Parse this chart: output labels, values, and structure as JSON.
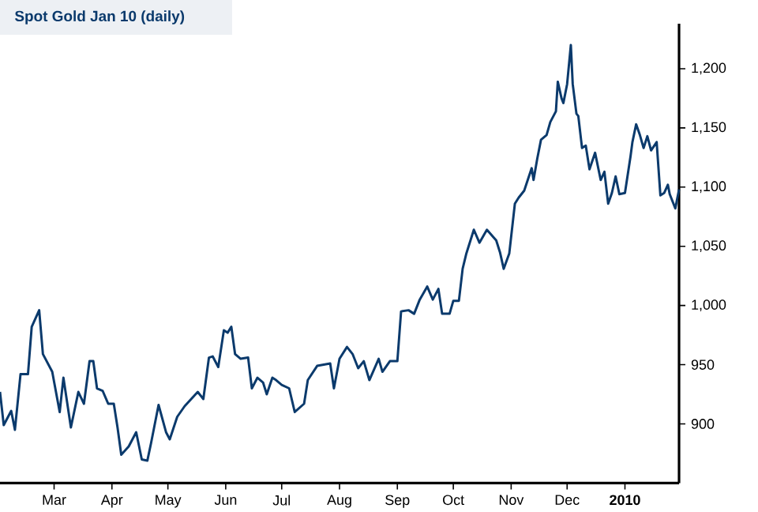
{
  "chart_data": {
    "type": "line",
    "title": "Spot Gold Jan 10 (daily)",
    "color": "#0b3a6c",
    "x": [
      "2009-01-31",
      "2009-02-02",
      "2009-02-06",
      "2009-02-08",
      "2009-02-11",
      "2009-02-15",
      "2009-02-17",
      "2009-02-21",
      "2009-02-23",
      "2009-02-28",
      "2009-03-04",
      "2009-03-06",
      "2009-03-10",
      "2009-03-14",
      "2009-03-17",
      "2009-03-20",
      "2009-03-22",
      "2009-03-24",
      "2009-03-27",
      "2009-03-30",
      "2009-04-02",
      "2009-04-04",
      "2009-04-06",
      "2009-04-10",
      "2009-04-14",
      "2009-04-17",
      "2009-04-20",
      "2009-04-22",
      "2009-04-26",
      "2009-04-30",
      "2009-05-02",
      "2009-05-06",
      "2009-05-10",
      "2009-05-17",
      "2009-05-20",
      "2009-05-23",
      "2009-05-25",
      "2009-05-28",
      "2009-05-31",
      "2009-06-02",
      "2009-06-04",
      "2009-06-06",
      "2009-06-09",
      "2009-06-13",
      "2009-06-15",
      "2009-06-18",
      "2009-06-21",
      "2009-06-23",
      "2009-06-26",
      "2009-06-28",
      "2009-07-01",
      "2009-07-05",
      "2009-07-08",
      "2009-07-13",
      "2009-07-15",
      "2009-07-20",
      "2009-07-27",
      "2009-07-29",
      "2009-08-01",
      "2009-08-05",
      "2009-08-08",
      "2009-08-11",
      "2009-08-14",
      "2009-08-17",
      "2009-08-22",
      "2009-08-24",
      "2009-08-28",
      "2009-09-01",
      "2009-09-03",
      "2009-09-07",
      "2009-09-10",
      "2009-09-13",
      "2009-09-17",
      "2009-09-20",
      "2009-09-23",
      "2009-09-25",
      "2009-09-29",
      "2009-10-01",
      "2009-10-04",
      "2009-10-06",
      "2009-10-08",
      "2009-10-12",
      "2009-10-15",
      "2009-10-19",
      "2009-10-24",
      "2009-10-26",
      "2009-10-28",
      "2009-10-31",
      "2009-11-03",
      "2009-11-05",
      "2009-11-08",
      "2009-11-12",
      "2009-11-13",
      "2009-11-15",
      "2009-11-17",
      "2009-11-20",
      "2009-11-22",
      "2009-11-25",
      "2009-11-26",
      "2009-11-28",
      "2009-11-29",
      "2009-12-01",
      "2009-12-03",
      "2009-12-04",
      "2009-12-06",
      "2009-12-07",
      "2009-12-09",
      "2009-12-11",
      "2009-12-13",
      "2009-12-16",
      "2009-12-19",
      "2009-12-21",
      "2009-12-23",
      "2009-12-25",
      "2009-12-27",
      "2009-12-29",
      "2010-01-01",
      "2010-01-04",
      "2010-01-05",
      "2010-01-07",
      "2010-01-09",
      "2010-01-11",
      "2010-01-13",
      "2010-01-15",
      "2010-01-18",
      "2010-01-20",
      "2010-01-22",
      "2010-01-24",
      "2010-01-25",
      "2010-01-28",
      "2010-01-30"
    ],
    "values": [
      927,
      899,
      911,
      895,
      942,
      942,
      982,
      996,
      959,
      944,
      910,
      939,
      897,
      927,
      917,
      953,
      953,
      930,
      928,
      917,
      917,
      897,
      874,
      881,
      893,
      870,
      869,
      884,
      916,
      893,
      887,
      906,
      915,
      927,
      921,
      956,
      957,
      948,
      979,
      977,
      982,
      959,
      955,
      956,
      930,
      939,
      935,
      925,
      939,
      937,
      933,
      930,
      910,
      917,
      937,
      949,
      951,
      930,
      955,
      965,
      959,
      947,
      953,
      937,
      955,
      944,
      953,
      953,
      995,
      996,
      993,
      1005,
      1016,
      1005,
      1014,
      993,
      993,
      1004,
      1004,
      1031,
      1044,
      1064,
      1053,
      1064,
      1055,
      1045,
      1031,
      1044,
      1086,
      1091,
      1097,
      1116,
      1106,
      1124,
      1140,
      1144,
      1155,
      1164,
      1189,
      1175,
      1171,
      1187,
      1220,
      1187,
      1162,
      1160,
      1133,
      1135,
      1115,
      1129,
      1106,
      1113,
      1086,
      1095,
      1109,
      1094,
      1095,
      1126,
      1138,
      1153,
      1144,
      1133,
      1143,
      1131,
      1138,
      1093,
      1095,
      1102,
      1094,
      1082,
      1098
    ],
    "xlim": [
      "2009-01-31",
      "2010-01-30"
    ],
    "ylim": [
      850,
      1238
    ],
    "xticks": [
      {
        "value": "2009-03-01",
        "label": "Mar"
      },
      {
        "value": "2009-04-01",
        "label": "Apr"
      },
      {
        "value": "2009-05-01",
        "label": "May"
      },
      {
        "value": "2009-06-01",
        "label": "Jun"
      },
      {
        "value": "2009-07-01",
        "label": "Jul"
      },
      {
        "value": "2009-08-01",
        "label": "Aug"
      },
      {
        "value": "2009-09-01",
        "label": "Sep"
      },
      {
        "value": "2009-10-01",
        "label": "Oct"
      },
      {
        "value": "2009-11-01",
        "label": "Nov"
      },
      {
        "value": "2009-12-01",
        "label": "Dec"
      },
      {
        "value": "2010-01-01",
        "label": "2010"
      }
    ],
    "yticks": [
      900,
      950,
      {
        "value": 1000,
        "label": "1,000"
      },
      {
        "value": 1050,
        "label": "1,050"
      },
      {
        "value": 1100,
        "label": "1,100"
      },
      {
        "value": 1150,
        "label": "1,150"
      },
      {
        "value": 1200,
        "label": "1,200"
      }
    ],
    "grid": false
  }
}
